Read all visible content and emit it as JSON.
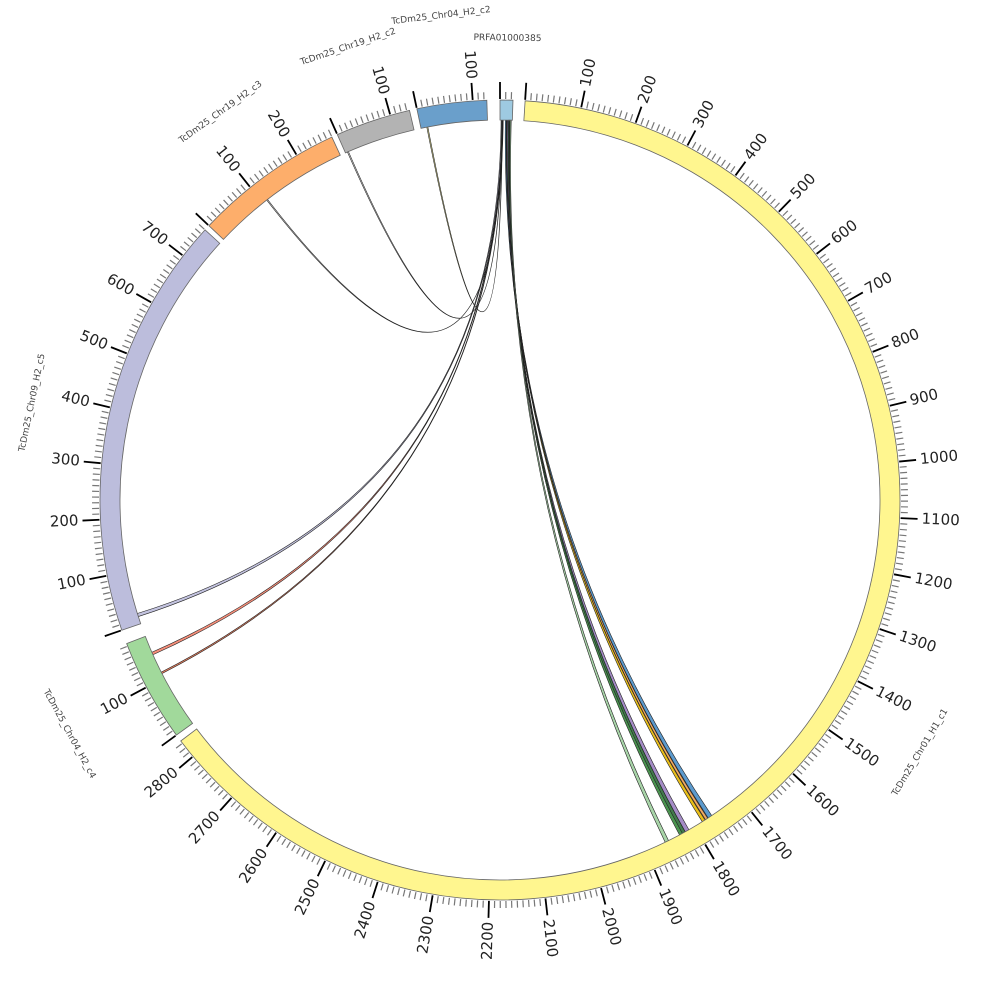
{
  "chart_data": {
    "type": "chord",
    "title": "",
    "tick_major_interval": 100,
    "tick_minor_interval": 10,
    "segments": [
      {
        "name": "TcDm25_Chr01_H1_c1",
        "length": 2835,
        "start_deg": 3.6,
        "color": "#fff68f"
      },
      {
        "name": "TcDm25_Chr04_H2_c4",
        "length": 185,
        "start_deg": 234.0,
        "color": "#a1d99b"
      },
      {
        "name": "TcDm25_Chr09_H2_c5",
        "length": 760,
        "start_deg": 251.0,
        "color": "#bcbddc"
      },
      {
        "name": "TcDm25_Chr19_H2_c3",
        "length": 270,
        "start_deg": 313.3,
        "color": "#fdae6b"
      },
      {
        "name": "TcDm25_Chr19_H2_c2",
        "length": 135,
        "start_deg": 336.0,
        "color": "#b3b3b3"
      },
      {
        "name": "TcDm25_Chr04_H2_c2",
        "length": 125,
        "start_deg": 348.0,
        "color": "#6a9fcb"
      },
      {
        "name": "PRFA01000385",
        "length": 23,
        "start_deg": 0.0,
        "color": "#9ecae1"
      }
    ],
    "degrees_per_unit": 0.0809,
    "links": [
      {
        "from": "PRFA01000385",
        "from_pos": [
          2,
          4
        ],
        "to": "TcDm25_Chr09_H2_c5",
        "to_pos": [
          14,
          20
        ],
        "color": "#bcbddc"
      },
      {
        "from": "PRFA01000385",
        "from_pos": [
          4,
          5
        ],
        "to": "TcDm25_Chr04_H2_c4",
        "to_pos": [
          148,
          153
        ],
        "color": "#f4826b"
      },
      {
        "from": "PRFA01000385",
        "from_pos": [
          5,
          6
        ],
        "to": "TcDm25_Chr04_H2_c4",
        "to_pos": [
          109,
          112
        ],
        "color": "#e0704e"
      },
      {
        "from": "PRFA01000385",
        "from_pos": [
          3,
          3.5
        ],
        "to": "TcDm25_Chr19_H2_c3",
        "to_pos": [
          109,
          111
        ],
        "color": "#ffffff"
      },
      {
        "from": "PRFA01000385",
        "from_pos": [
          3.5,
          4
        ],
        "to": "TcDm25_Chr19_H2_c2",
        "to_pos": [
          4,
          6
        ],
        "color": "#ffffff"
      },
      {
        "from": "PRFA01000385",
        "from_pos": [
          4,
          4.5
        ],
        "to": "TcDm25_Chr04_H2_c2",
        "to_pos": [
          11,
          13
        ],
        "color": "#f5f09a"
      },
      {
        "from": "PRFA01000385",
        "from_pos": [
          10,
          12
        ],
        "to": "TcDm25_Chr01_H1_c1",
        "to_pos": [
          1762,
          1770
        ],
        "color": "#4a8fc8"
      },
      {
        "from": "PRFA01000385",
        "from_pos": [
          12,
          13
        ],
        "to": "TcDm25_Chr01_H1_c1",
        "to_pos": [
          1771,
          1776
        ],
        "color": "#f0a050"
      },
      {
        "from": "PRFA01000385",
        "from_pos": [
          13,
          14
        ],
        "to": "TcDm25_Chr01_H1_c1",
        "to_pos": [
          1777,
          1783
        ],
        "color": "#e8b800"
      },
      {
        "from": "PRFA01000385",
        "from_pos": [
          14,
          16
        ],
        "to": "TcDm25_Chr01_H1_c1",
        "to_pos": [
          1812,
          1820
        ],
        "color": "#9a7fc0"
      },
      {
        "from": "PRFA01000385",
        "from_pos": [
          16,
          18
        ],
        "to": "TcDm25_Chr01_H1_c1",
        "to_pos": [
          1820,
          1830
        ],
        "color": "#2e6b3a"
      },
      {
        "from": "PRFA01000385",
        "from_pos": [
          18,
          19
        ],
        "to": "TcDm25_Chr01_H1_c1",
        "to_pos": [
          1826,
          1832
        ],
        "color": "#4a9a50"
      },
      {
        "from": "PRFA01000385",
        "from_pos": [
          19,
          21
        ],
        "to": "TcDm25_Chr01_H1_c1",
        "to_pos": [
          1855,
          1862
        ],
        "color": "#a0d0a0"
      }
    ]
  }
}
